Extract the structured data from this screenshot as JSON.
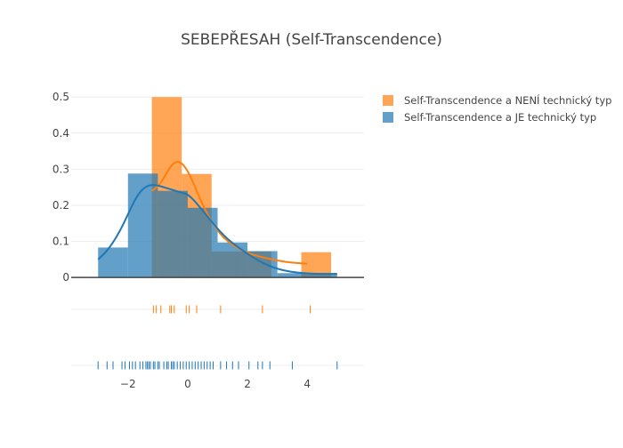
{
  "chart_data": {
    "type": "histogram",
    "title": "SEBEPŘESAH (Self-Transcendence)",
    "xlabel": "",
    "ylabel": "",
    "xlim": [
      -3.9,
      5.9
    ],
    "ylim": [
      -0.012,
      0.53
    ],
    "x_ticks": [
      -2,
      0,
      2,
      4
    ],
    "x_tick_labels": [
      "−2",
      "0",
      "2",
      "4"
    ],
    "y_ticks": [
      0,
      0.1,
      0.2,
      0.3,
      0.4,
      0.5
    ],
    "y_tick_labels": [
      "0",
      "0.1",
      "0.2",
      "0.3",
      "0.4",
      "0.5"
    ],
    "grid": true,
    "legend_position": "top-right",
    "series": [
      {
        "name": "Self-Transcendence a NENÍ technický typ",
        "color": "#ff7f0e",
        "bins": [
          {
            "x0": -1.2,
            "x1": -0.2,
            "value": 0.5
          },
          {
            "x0": -0.2,
            "x1": 0.8,
            "value": 0.287
          },
          {
            "x0": 0.8,
            "x1": 1.8,
            "value": 0.072
          },
          {
            "x0": 1.8,
            "x1": 2.8,
            "value": 0.072
          },
          {
            "x0": 3.8,
            "x1": 4.8,
            "value": 0.07
          }
        ],
        "kde": {
          "x": [
            -1.2,
            -1.0,
            -0.8,
            -0.6,
            -0.4,
            -0.2,
            0.0,
            0.2,
            0.4,
            0.6,
            0.8,
            1.0,
            1.2,
            1.5,
            1.8,
            2.1,
            2.4,
            2.7,
            3.0,
            3.3,
            3.6,
            4.0
          ],
          "y": [
            0.24,
            0.252,
            0.275,
            0.305,
            0.322,
            0.318,
            0.295,
            0.26,
            0.22,
            0.185,
            0.155,
            0.13,
            0.11,
            0.09,
            0.075,
            0.065,
            0.058,
            0.052,
            0.047,
            0.043,
            0.04,
            0.038
          ]
        },
        "rug": [
          -1.15,
          -1.05,
          -0.9,
          -0.6,
          -0.55,
          -0.45,
          -0.05,
          0.05,
          0.3,
          1.1,
          2.5,
          4.1
        ]
      },
      {
        "name": "Self-Transcendence a JE technický typ",
        "color": "#1f77b4",
        "bins": [
          {
            "x0": -3.0,
            "x1": -2.0,
            "value": 0.083
          },
          {
            "x0": -2.0,
            "x1": -1.0,
            "value": 0.288
          },
          {
            "x0": -1.0,
            "x1": 0.0,
            "value": 0.24
          },
          {
            "x0": 0.0,
            "x1": 1.0,
            "value": 0.193
          },
          {
            "x0": 1.0,
            "x1": 2.0,
            "value": 0.097
          },
          {
            "x0": 2.0,
            "x1": 3.0,
            "value": 0.073
          },
          {
            "x0": 3.0,
            "x1": 4.0,
            "value": 0.012
          },
          {
            "x0": 4.0,
            "x1": 5.0,
            "value": 0.012
          }
        ],
        "kde": {
          "x": [
            -3.0,
            -2.8,
            -2.6,
            -2.4,
            -2.2,
            -2.0,
            -1.8,
            -1.6,
            -1.4,
            -1.2,
            -1.0,
            -0.8,
            -0.6,
            -0.4,
            -0.2,
            0.0,
            0.2,
            0.4,
            0.6,
            0.8,
            1.0,
            1.2,
            1.5,
            1.8,
            2.1,
            2.4,
            2.7,
            3.0,
            3.3,
            3.6,
            4.0,
            4.4,
            5.0
          ],
          "y": [
            0.05,
            0.065,
            0.085,
            0.11,
            0.14,
            0.175,
            0.21,
            0.237,
            0.252,
            0.257,
            0.255,
            0.25,
            0.245,
            0.24,
            0.235,
            0.23,
            0.215,
            0.195,
            0.175,
            0.155,
            0.135,
            0.117,
            0.095,
            0.077,
            0.06,
            0.045,
            0.033,
            0.024,
            0.018,
            0.014,
            0.011,
            0.01,
            0.01
          ]
        },
        "rug": [
          -3.0,
          -2.7,
          -2.5,
          -2.2,
          -2.1,
          -1.95,
          -1.85,
          -1.75,
          -1.6,
          -1.5,
          -1.4,
          -1.35,
          -1.3,
          -1.25,
          -1.15,
          -1.1,
          -1.0,
          -0.95,
          -0.8,
          -0.7,
          -0.65,
          -0.55,
          -0.5,
          -0.45,
          -0.35,
          -0.25,
          -0.15,
          -0.05,
          0.05,
          0.15,
          0.25,
          0.35,
          0.45,
          0.55,
          0.65,
          0.75,
          0.85,
          1.1,
          1.3,
          1.5,
          1.7,
          2.05,
          2.35,
          2.5,
          2.75,
          3.5,
          5.0
        ]
      }
    ]
  }
}
